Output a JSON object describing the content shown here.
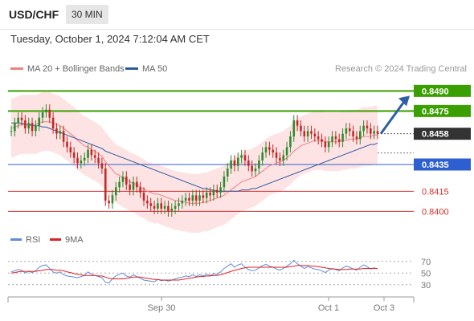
{
  "header": {
    "symbol": "USD/CHF",
    "timeframe": "30 MIN"
  },
  "datetime": "Tuesday, October 1, 2024 7:12:04 AM CET",
  "credit": "Research © 2024 Trading Central",
  "legend_top": [
    {
      "label": "MA 20 + Bollinger Bands",
      "color": "#f08080"
    },
    {
      "label": "MA 50",
      "color": "#2c5aa0"
    }
  ],
  "legend_bottom": [
    {
      "label": "RSI",
      "color": "#5b8dd9"
    },
    {
      "label": "9MA",
      "color": "#e02020"
    }
  ],
  "chart_data": [
    {
      "type": "candlestick",
      "y_range": [
        0.8393,
        0.8498
      ],
      "current_price": 0.8458,
      "levels": [
        {
          "value": 0.849,
          "label": "0.8490",
          "kind": "target-2",
          "color": "#3aa000"
        },
        {
          "value": 0.8475,
          "label": "0.8475",
          "kind": "target-1",
          "color": "#3aa000"
        },
        {
          "value": 0.8458,
          "label": "0.8458",
          "kind": "last-price",
          "color": "#333333"
        },
        {
          "value": 0.8435,
          "label": "0.8435",
          "kind": "pivot",
          "color": "#2d5fd0"
        },
        {
          "value": 0.8415,
          "label": "0.8415",
          "kind": "support-1",
          "color": "#d03030"
        },
        {
          "value": 0.84,
          "label": "0.8400",
          "kind": "support-2",
          "color": "#d03030"
        }
      ],
      "x_ticks": [
        "Sep 30",
        "Oct 1",
        "Oct 3"
      ],
      "closes": [
        0.846,
        0.8466,
        0.847,
        0.8468,
        0.8462,
        0.8466,
        0.846,
        0.8464,
        0.847,
        0.8474,
        0.8476,
        0.847,
        0.8462,
        0.8458,
        0.846,
        0.8452,
        0.8448,
        0.8444,
        0.844,
        0.8436,
        0.8438,
        0.844,
        0.8446,
        0.8442,
        0.844,
        0.8436,
        0.8432,
        0.8408,
        0.8406,
        0.8412,
        0.8418,
        0.8422,
        0.8426,
        0.842,
        0.8416,
        0.8422,
        0.8418,
        0.8414,
        0.8408,
        0.8406,
        0.8404,
        0.8402,
        0.8406,
        0.8402,
        0.8404,
        0.84,
        0.8402,
        0.8404,
        0.8406,
        0.8408,
        0.841,
        0.8408,
        0.8412,
        0.8408,
        0.8412,
        0.841,
        0.8414,
        0.8412,
        0.8416,
        0.8414,
        0.8418,
        0.8426,
        0.8432,
        0.8438,
        0.8434,
        0.844,
        0.8442,
        0.8438,
        0.8434,
        0.843,
        0.8432,
        0.8438,
        0.8444,
        0.8448,
        0.8446,
        0.8444,
        0.844,
        0.8438,
        0.8442,
        0.8448,
        0.8456,
        0.8468,
        0.8464,
        0.846,
        0.8456,
        0.846,
        0.8458,
        0.8456,
        0.8454,
        0.8452,
        0.8448,
        0.8452,
        0.8456,
        0.8454,
        0.8452,
        0.8458,
        0.8462,
        0.846,
        0.8456,
        0.8454,
        0.846,
        0.8464,
        0.8462,
        0.8458,
        0.846,
        0.8458
      ],
      "ma20": [
        0.8462,
        0.8463,
        0.8464,
        0.8465,
        0.8465,
        0.8465,
        0.8465,
        0.8465,
        0.8466,
        0.8467,
        0.8467,
        0.8467,
        0.8466,
        0.8465,
        0.8464,
        0.8462,
        0.846,
        0.8458,
        0.8456,
        0.8453,
        0.8451,
        0.8449,
        0.8448,
        0.8446,
        0.8445,
        0.8443,
        0.8441,
        0.8437,
        0.8434,
        0.8431,
        0.8428,
        0.8427,
        0.8425,
        0.8424,
        0.8422,
        0.8421,
        0.842,
        0.8418,
        0.8417,
        0.8415,
        0.8414,
        0.8413,
        0.8413,
        0.8412,
        0.8411,
        0.841,
        0.8409,
        0.8408,
        0.8408,
        0.8407,
        0.8407,
        0.8406,
        0.8406,
        0.8406,
        0.8406,
        0.8407,
        0.8407,
        0.8408,
        0.8409,
        0.841,
        0.8411,
        0.8412,
        0.8414,
        0.8416,
        0.8418,
        0.842,
        0.8422,
        0.8423,
        0.8424,
        0.8425,
        0.8426,
        0.8428,
        0.843,
        0.8432,
        0.8434,
        0.8435,
        0.8436,
        0.8437,
        0.8438,
        0.844,
        0.8442,
        0.8445,
        0.8447,
        0.8449,
        0.845,
        0.8451,
        0.8452,
        0.8453,
        0.8453,
        0.8453,
        0.8452,
        0.8452,
        0.8452,
        0.8452,
        0.8452,
        0.8453,
        0.8453,
        0.8454,
        0.8454,
        0.8454,
        0.8455,
        0.8456,
        0.8456,
        0.8456,
        0.8457,
        0.8457
      ],
      "ma50": [
        0.8466,
        0.8466,
        0.8466,
        0.8466,
        0.8465,
        0.8465,
        0.8464,
        0.8464,
        0.8464,
        0.8463,
        0.8463,
        0.8462,
        0.8461,
        0.846,
        0.8459,
        0.8458,
        0.8457,
        0.8456,
        0.8455,
        0.8454,
        0.8453,
        0.8452,
        0.8451,
        0.845,
        0.8449,
        0.8448,
        0.8447,
        0.8445,
        0.8444,
        0.8443,
        0.8442,
        0.8441,
        0.844,
        0.8439,
        0.8438,
        0.8437,
        0.8436,
        0.8435,
        0.8434,
        0.8433,
        0.8432,
        0.8431,
        0.843,
        0.8429,
        0.8428,
        0.8427,
        0.8426,
        0.8425,
        0.8424,
        0.8423,
        0.8422,
        0.8421,
        0.842,
        0.8419,
        0.8418,
        0.8417,
        0.8417,
        0.8416,
        0.8416,
        0.8415,
        0.8415,
        0.8415,
        0.8415,
        0.8415,
        0.8415,
        0.8415,
        0.8416,
        0.8416,
        0.8416,
        0.8417,
        0.8417,
        0.8418,
        0.8419,
        0.842,
        0.8421,
        0.8422,
        0.8423,
        0.8424,
        0.8425,
        0.8426,
        0.8427,
        0.8428,
        0.8429,
        0.843,
        0.8431,
        0.8432,
        0.8433,
        0.8434,
        0.8435,
        0.8436,
        0.8437,
        0.8438,
        0.8439,
        0.844,
        0.8441,
        0.8442,
        0.8443,
        0.8444,
        0.8445,
        0.8446,
        0.8447,
        0.8448,
        0.8449,
        0.845,
        0.845,
        0.8451
      ],
      "bb_width": 0.0022
    },
    {
      "type": "line",
      "name": "RSI",
      "y_range": [
        20,
        78
      ],
      "y_ticks": [
        70,
        50,
        30
      ],
      "rsi": [
        52,
        54,
        56,
        55,
        50,
        53,
        51,
        54,
        60,
        63,
        64,
        58,
        52,
        50,
        52,
        47,
        45,
        44,
        43,
        42,
        44,
        46,
        52,
        48,
        46,
        44,
        42,
        34,
        33,
        40,
        45,
        48,
        50,
        45,
        43,
        47,
        44,
        41,
        38,
        37,
        36,
        35,
        39,
        37,
        38,
        36,
        38,
        40,
        42,
        43,
        45,
        44,
        47,
        44,
        47,
        45,
        48,
        46,
        49,
        48,
        52,
        58,
        62,
        66,
        60,
        64,
        66,
        60,
        56,
        54,
        55,
        59,
        63,
        65,
        62,
        60,
        57,
        55,
        58,
        62,
        66,
        72,
        66,
        62,
        58,
        61,
        59,
        57,
        56,
        54,
        51,
        55,
        58,
        56,
        54,
        59,
        62,
        60,
        57,
        55,
        60,
        64,
        61,
        57,
        59,
        57
      ],
      "ma9": [
        50,
        51,
        52,
        53,
        53,
        53,
        53,
        53,
        54,
        55,
        56,
        56,
        56,
        55,
        55,
        54,
        52,
        51,
        49,
        48,
        47,
        46,
        46,
        46,
        46,
        45,
        45,
        43,
        41,
        40,
        40,
        40,
        40,
        41,
        42,
        43,
        43,
        43,
        42,
        41,
        40,
        39,
        39,
        38,
        38,
        38,
        38,
        38,
        38,
        39,
        40,
        41,
        42,
        43,
        44,
        44,
        45,
        45,
        46,
        46,
        47,
        49,
        51,
        53,
        55,
        56,
        58,
        59,
        60,
        60,
        60,
        60,
        60,
        60,
        60,
        60,
        60,
        60,
        60,
        60,
        61,
        62,
        63,
        63,
        63,
        63,
        62,
        62,
        61,
        60,
        59,
        58,
        57,
        57,
        56,
        56,
        56,
        57,
        57,
        57,
        57,
        58,
        58,
        58,
        58,
        58
      ]
    }
  ]
}
